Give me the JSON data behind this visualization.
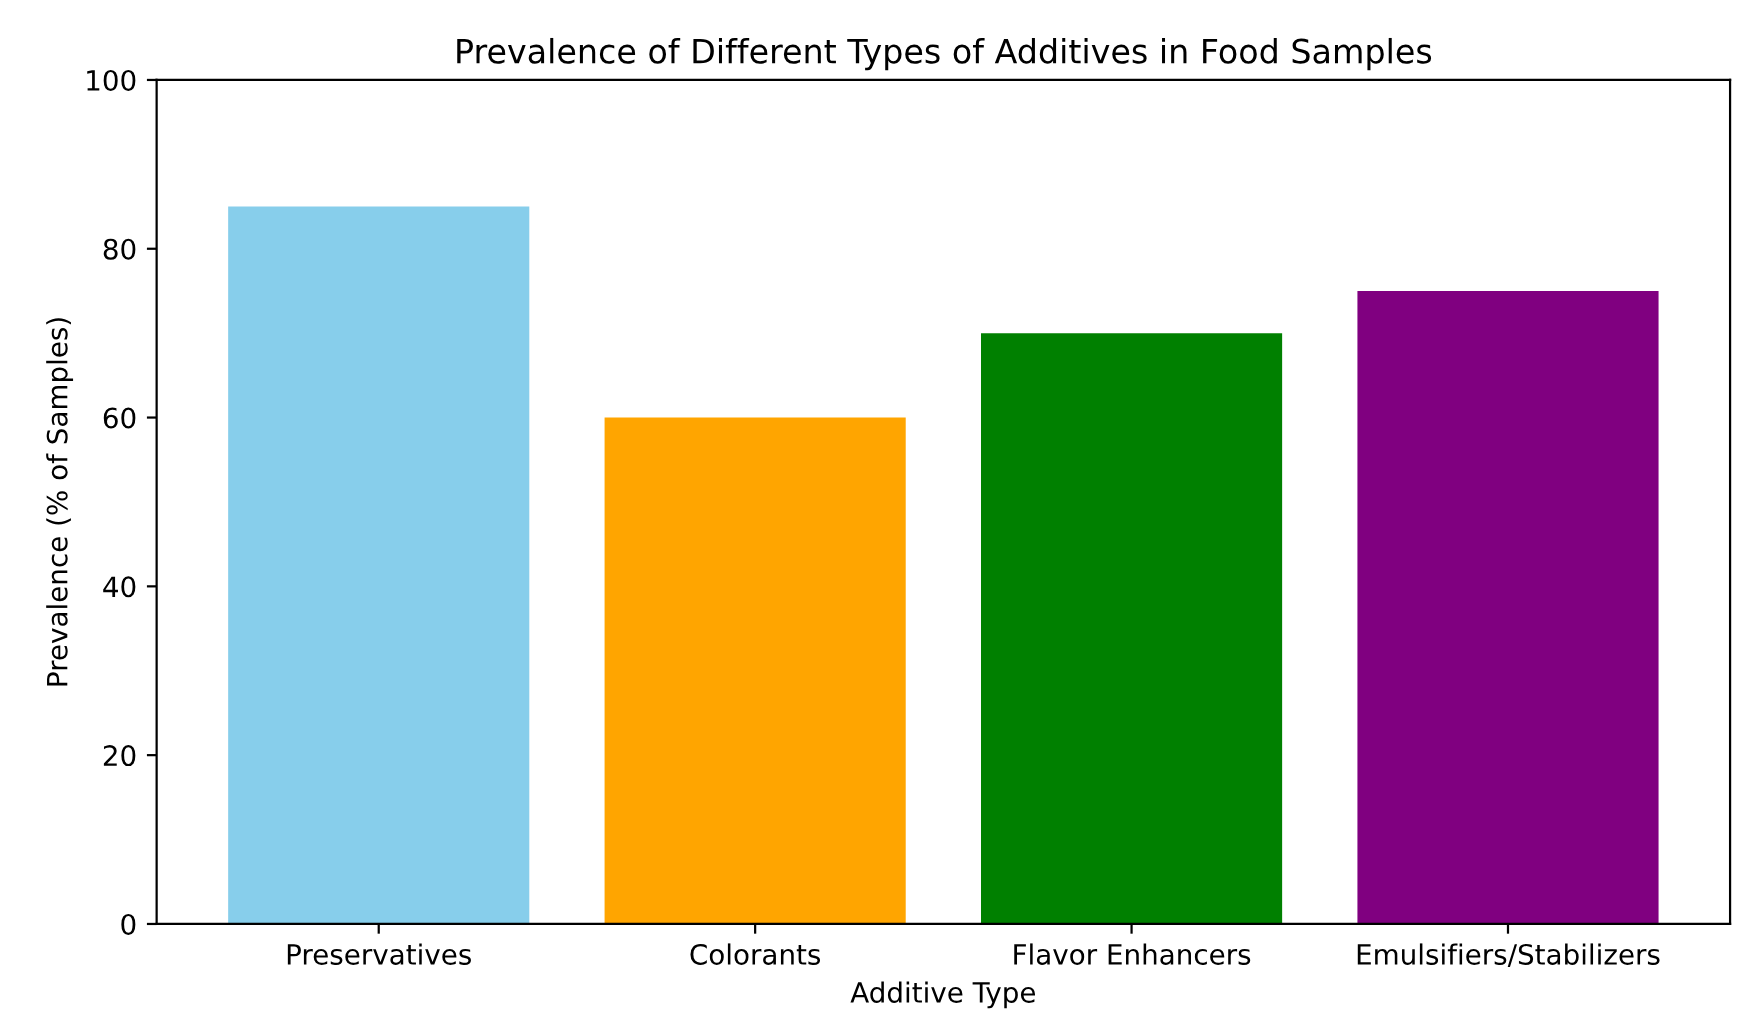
{
  "chart_data": {
    "type": "bar",
    "title": "Prevalence of Different Types of Additives in Food Samples",
    "xlabel": "Additive Type",
    "ylabel": "Prevalence (% of Samples)",
    "categories": [
      "Preservatives",
      "Colorants",
      "Flavor Enhancers",
      "Emulsifiers/Stabilizers"
    ],
    "values": [
      85,
      60,
      70,
      75
    ],
    "colors": [
      "#87ceeb",
      "#ffa500",
      "#008000",
      "#800080"
    ],
    "ylim": [
      0,
      100
    ],
    "yticks": [
      0,
      20,
      40,
      60,
      80,
      100
    ]
  }
}
